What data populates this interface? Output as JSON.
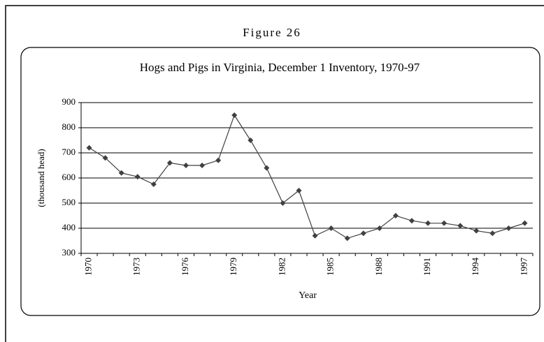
{
  "figure_label": "Figure 26",
  "chart_data": {
    "type": "line",
    "title": "Hogs and Pigs in Virginia, December 1 Inventory, 1970-97",
    "x_label": "Year",
    "y_label": "(thousand head)",
    "categories": [
      "1970",
      null,
      null,
      "1973",
      null,
      null,
      "1976",
      null,
      null,
      "1979",
      null,
      null,
      "1982",
      null,
      null,
      "1985",
      null,
      null,
      "1988",
      null,
      null,
      "1991",
      null,
      null,
      "1994",
      null,
      null,
      "1997"
    ],
    "series": [
      {
        "name": "Hogs and Pigs",
        "color": "#404040",
        "values": [
          720,
          680,
          620,
          605,
          575,
          660,
          650,
          650,
          670,
          850,
          750,
          640,
          500,
          550,
          370,
          400,
          360,
          380,
          400,
          450,
          430,
          420,
          420,
          410,
          390,
          380,
          400,
          420
        ]
      }
    ],
    "ylim": [
      300,
      900
    ],
    "yticks": [
      300,
      400,
      500,
      600,
      700,
      800,
      900
    ],
    "grid": true
  }
}
